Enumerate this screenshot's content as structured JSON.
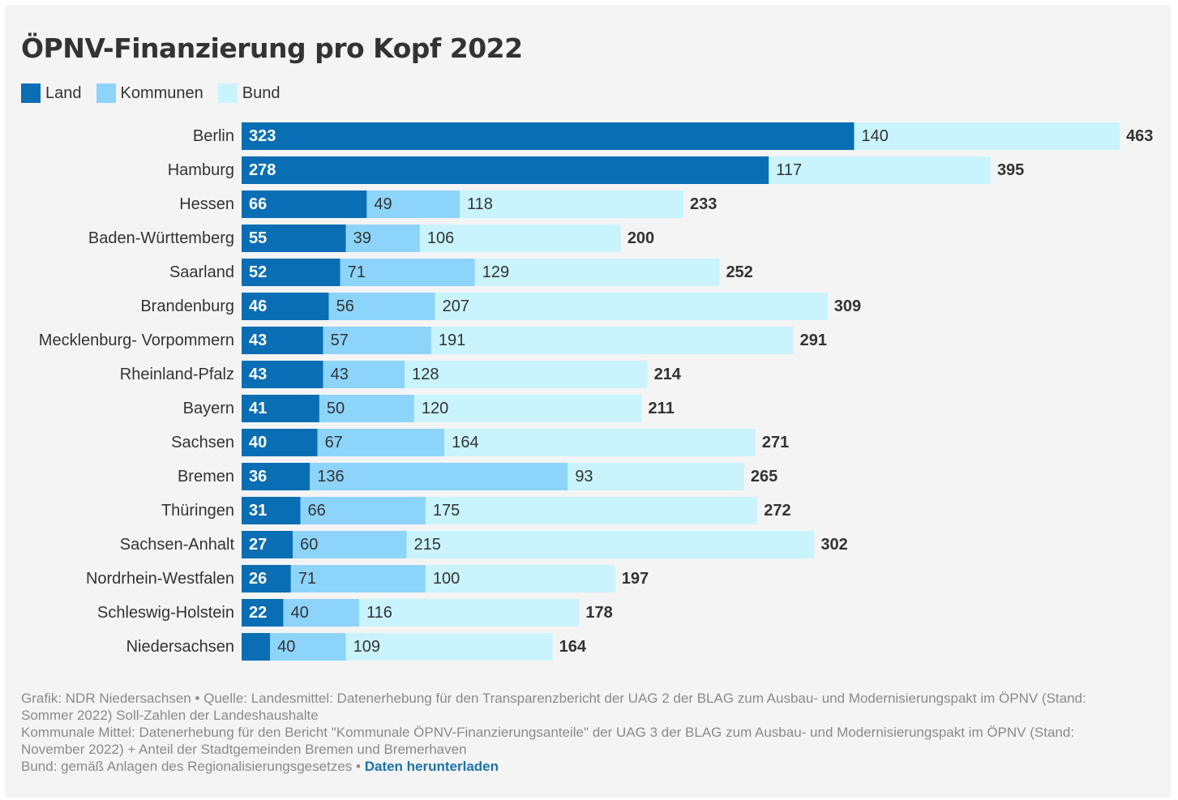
{
  "chart_data": {
    "type": "bar",
    "orientation": "horizontal",
    "stacked": true,
    "title": "ÖPNV-Finanzierung pro Kopf 2022",
    "legend_position": "top-left",
    "categories": [
      "Berlin",
      "Hamburg",
      "Hessen",
      "Baden-Württemberg",
      "Saarland",
      "Brandenburg",
      "Mecklenburg- Vorpommern",
      "Rheinland-Pfalz",
      "Bayern",
      "Sachsen",
      "Bremen",
      "Thüringen",
      "Sachsen-Anhalt",
      "Nordrhein-Westfalen",
      "Schleswig-Holstein",
      "Niedersachsen"
    ],
    "series": [
      {
        "name": "Land",
        "color": "#0a6eb4",
        "label_color": "#ffffff",
        "label_bold": true,
        "values": [
          323,
          278,
          66,
          55,
          52,
          46,
          43,
          43,
          41,
          40,
          36,
          31,
          27,
          26,
          22,
          15
        ],
        "show_labels": [
          true,
          true,
          true,
          true,
          true,
          true,
          true,
          true,
          true,
          true,
          true,
          true,
          true,
          true,
          true,
          false
        ]
      },
      {
        "name": "Kommunen",
        "color": "#8dd4fb",
        "label_color": "#333333",
        "label_bold": false,
        "values": [
          0,
          0,
          49,
          39,
          71,
          56,
          57,
          43,
          50,
          67,
          136,
          66,
          60,
          71,
          40,
          40
        ],
        "show_labels": [
          false,
          false,
          true,
          true,
          true,
          true,
          true,
          true,
          true,
          true,
          true,
          true,
          true,
          true,
          true,
          true
        ]
      },
      {
        "name": "Bund",
        "color": "#c9f4fd",
        "label_color": "#333333",
        "label_bold": false,
        "values": [
          140,
          117,
          118,
          106,
          129,
          207,
          191,
          128,
          120,
          164,
          93,
          175,
          215,
          100,
          116,
          109
        ],
        "show_labels": [
          true,
          true,
          true,
          true,
          true,
          true,
          true,
          true,
          true,
          true,
          true,
          true,
          true,
          true,
          true,
          true
        ]
      }
    ],
    "totals": [
      463,
      395,
      233,
      200,
      252,
      309,
      291,
      214,
      211,
      271,
      265,
      272,
      302,
      197,
      178,
      164
    ],
    "xlim": [
      0,
      463
    ],
    "grid": false
  },
  "footer": {
    "line1": "Grafik: NDR Niedersachsen • Quelle: Landesmittel: Datenerhebung für den Transparenzbericht der UAG 2 der BLAG zum Ausbau- und Modernisierungspakt im ÖPNV (Stand: Sommer 2022) Soll-Zahlen der Landeshaushalte",
    "line2": "Kommunale Mittel: Datenerhebung für den Bericht \"Kommunale ÖPNV-Finanzierungsanteile\" der UAG 3 der BLAG zum Ausbau- und Modernisierungspakt im ÖPNV (Stand: November 2022) + Anteil der Stadtgemeinden Bremen und Bremerhaven",
    "line3": "Bund: gemäß Anlagen des Regionalisierungsgesetzes •",
    "download_label": "Daten herunterladen"
  }
}
